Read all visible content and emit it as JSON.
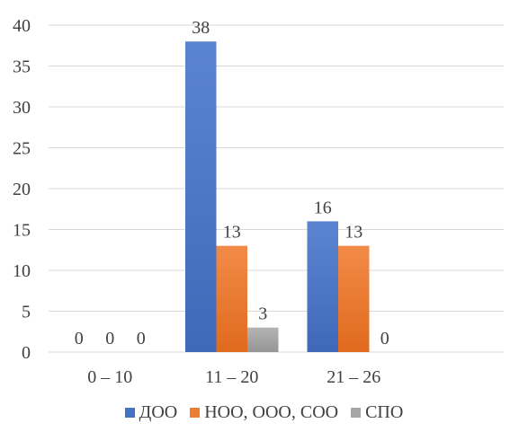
{
  "chart_data": {
    "type": "bar",
    "categories": [
      "0 – 10",
      "11 – 20",
      "21 – 26"
    ],
    "series": [
      {
        "name": "ДОО",
        "values": [
          0,
          38,
          16
        ],
        "color": "#4472C4"
      },
      {
        "name": "НОО, ООО, СОО",
        "values": [
          0,
          13,
          13
        ],
        "color": "#ED7D31"
      },
      {
        "name": "СПО",
        "values": [
          0,
          3,
          0
        ],
        "color": "#A5A5A5"
      }
    ],
    "yticks": [
      0,
      5,
      10,
      15,
      20,
      25,
      30,
      35,
      40
    ],
    "ylim": [
      0,
      40
    ],
    "grid": true,
    "legend_position": "bottom",
    "title": "",
    "xlabel": "",
    "ylabel": ""
  }
}
